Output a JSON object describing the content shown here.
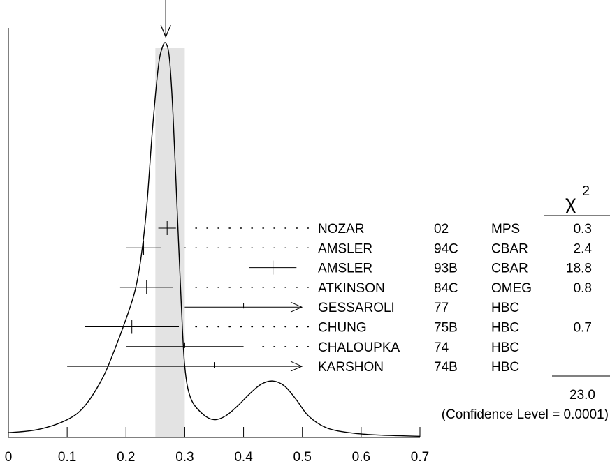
{
  "chart_data": {
    "type": "ideogram",
    "x_axis": {
      "range": [
        0,
        0.7
      ],
      "ticks": [
        "0",
        "0.1",
        "0.2",
        "0.3",
        "0.4",
        "0.5",
        "0.6",
        "0.7"
      ],
      "tick_values": [
        0,
        0.1,
        0.2,
        0.3,
        0.4,
        0.5,
        0.6,
        0.7
      ]
    },
    "weighted_average": 0.27,
    "shaded_band": [
      0.25,
      0.3
    ],
    "chi2_header": "χ",
    "chi2_power": "2",
    "measurements": [
      {
        "name": "NOZAR",
        "year": "02",
        "tech": "MPS",
        "chi2": "0.3",
        "value": 0.27,
        "lo": 0.255,
        "hi": 0.285,
        "used": true
      },
      {
        "name": "AMSLER",
        "year": "94C",
        "tech": "CBAR",
        "chi2": "2.4",
        "value": 0.23,
        "lo": 0.2,
        "hi": 0.26,
        "used": true
      },
      {
        "name": "AMSLER",
        "year": "93B",
        "tech": "CBAR",
        "chi2": "18.8",
        "value": 0.45,
        "lo": 0.41,
        "hi": 0.49,
        "used": true
      },
      {
        "name": "ATKINSON",
        "year": "84C",
        "tech": "OMEG",
        "chi2": "0.8",
        "value": 0.235,
        "lo": 0.19,
        "hi": 0.28,
        "used": true
      },
      {
        "name": "GESSAROLI",
        "year": "77",
        "tech": "HBC",
        "chi2": "",
        "value": 0.4,
        "lo": 0.3,
        "hi": 0.72,
        "used": false,
        "arrow_right": true
      },
      {
        "name": "CHUNG",
        "year": "75B",
        "tech": "HBC",
        "chi2": "0.7",
        "value": 0.21,
        "lo": 0.13,
        "hi": 0.29,
        "used": true
      },
      {
        "name": "CHALOUPKA",
        "year": "74",
        "tech": "HBC",
        "chi2": "",
        "value": 0.3,
        "lo": 0.2,
        "hi": 0.4,
        "used": false
      },
      {
        "name": "KARSHON",
        "year": "74B",
        "tech": "HBC",
        "chi2": "",
        "value": 0.35,
        "lo": 0.1,
        "hi": 0.72,
        "used": false,
        "arrow_right": true
      }
    ],
    "chi2_total": "23.0",
    "confidence_text": "(Confidence Level = 0.0001)",
    "ideogram_curve": [
      [
        0.0,
        0.012
      ],
      [
        0.05,
        0.02
      ],
      [
        0.1,
        0.045
      ],
      [
        0.13,
        0.08
      ],
      [
        0.16,
        0.15
      ],
      [
        0.18,
        0.22
      ],
      [
        0.2,
        0.3
      ],
      [
        0.215,
        0.37
      ],
      [
        0.225,
        0.45
      ],
      [
        0.235,
        0.58
      ],
      [
        0.245,
        0.78
      ],
      [
        0.255,
        0.94
      ],
      [
        0.262,
        0.99
      ],
      [
        0.268,
        1.0
      ],
      [
        0.274,
        0.96
      ],
      [
        0.28,
        0.82
      ],
      [
        0.287,
        0.58
      ],
      [
        0.294,
        0.34
      ],
      [
        0.3,
        0.18
      ],
      [
        0.31,
        0.1
      ],
      [
        0.33,
        0.06
      ],
      [
        0.35,
        0.045
      ],
      [
        0.37,
        0.055
      ],
      [
        0.39,
        0.08
      ],
      [
        0.41,
        0.11
      ],
      [
        0.43,
        0.135
      ],
      [
        0.45,
        0.143
      ],
      [
        0.47,
        0.13
      ],
      [
        0.49,
        0.095
      ],
      [
        0.51,
        0.055
      ],
      [
        0.54,
        0.025
      ],
      [
        0.58,
        0.012
      ],
      [
        0.63,
        0.006
      ],
      [
        0.7,
        0.003
      ]
    ]
  }
}
